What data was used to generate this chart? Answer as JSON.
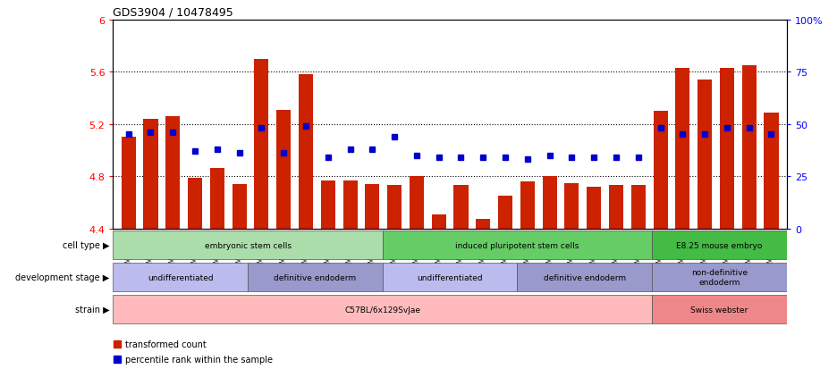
{
  "title": "GDS3904 / 10478495",
  "samples": [
    "GSM668567",
    "GSM668568",
    "GSM668569",
    "GSM668582",
    "GSM668583",
    "GSM668584",
    "GSM668564",
    "GSM668565",
    "GSM668566",
    "GSM668579",
    "GSM668580",
    "GSM668581",
    "GSM668585",
    "GSM668586",
    "GSM668587",
    "GSM668588",
    "GSM668589",
    "GSM668590",
    "GSM668576",
    "GSM668577",
    "GSM668578",
    "GSM668591",
    "GSM668592",
    "GSM668593",
    "GSM668573",
    "GSM668574",
    "GSM668575",
    "GSM668570",
    "GSM668571",
    "GSM668572"
  ],
  "bar_values": [
    5.1,
    5.24,
    5.26,
    4.79,
    4.86,
    4.74,
    5.7,
    5.31,
    5.58,
    4.77,
    4.77,
    4.74,
    4.73,
    4.8,
    4.51,
    4.73,
    4.47,
    4.65,
    4.76,
    4.8,
    4.75,
    4.72,
    4.73,
    4.73,
    5.3,
    5.63,
    5.54,
    5.63,
    5.65,
    5.29
  ],
  "percentile_raw": [
    45,
    46,
    46,
    37,
    38,
    36,
    48,
    36,
    49,
    34,
    38,
    38,
    44,
    35,
    34,
    34,
    34,
    34,
    33,
    35,
    34,
    34,
    34,
    34,
    48,
    45,
    45,
    48,
    48,
    45
  ],
  "ymin": 4.4,
  "ymax": 6.0,
  "yticks": [
    4.4,
    4.8,
    5.2,
    5.6,
    6.0
  ],
  "ytick_labels": [
    "4.4",
    "4.8",
    "5.2",
    "5.6",
    "6"
  ],
  "right_yticks": [
    0,
    25,
    50,
    75,
    100
  ],
  "right_ytick_labels": [
    "0",
    "25",
    "50",
    "75",
    "100%"
  ],
  "bar_color": "#cc2200",
  "dot_color": "#0000cc",
  "cell_type_groups": [
    {
      "label": "embryonic stem cells",
      "start": 0,
      "end": 11,
      "color": "#aaddaa"
    },
    {
      "label": "induced pluripotent stem cells",
      "start": 12,
      "end": 23,
      "color": "#66cc66"
    },
    {
      "label": "E8.25 mouse embryo",
      "start": 24,
      "end": 29,
      "color": "#44bb44"
    }
  ],
  "dev_stage_groups": [
    {
      "label": "undifferentiated",
      "start": 0,
      "end": 5,
      "color": "#bbbbee"
    },
    {
      "label": "definitive endoderm",
      "start": 6,
      "end": 11,
      "color": "#9999cc"
    },
    {
      "label": "undifferentiated",
      "start": 12,
      "end": 17,
      "color": "#bbbbee"
    },
    {
      "label": "definitive endoderm",
      "start": 18,
      "end": 23,
      "color": "#9999cc"
    },
    {
      "label": "non-definitive\nendoderm",
      "start": 24,
      "end": 29,
      "color": "#9999cc"
    }
  ],
  "strain_groups": [
    {
      "label": "C57BL/6x129SvJae",
      "start": 0,
      "end": 23,
      "color": "#ffbbbb"
    },
    {
      "label": "Swiss webster",
      "start": 24,
      "end": 29,
      "color": "#ee8888"
    }
  ],
  "row_labels": [
    "cell type",
    "development stage",
    "strain"
  ],
  "legend_items": [
    {
      "label": "transformed count",
      "color": "#cc2200"
    },
    {
      "label": "percentile rank within the sample",
      "color": "#0000cc"
    }
  ]
}
